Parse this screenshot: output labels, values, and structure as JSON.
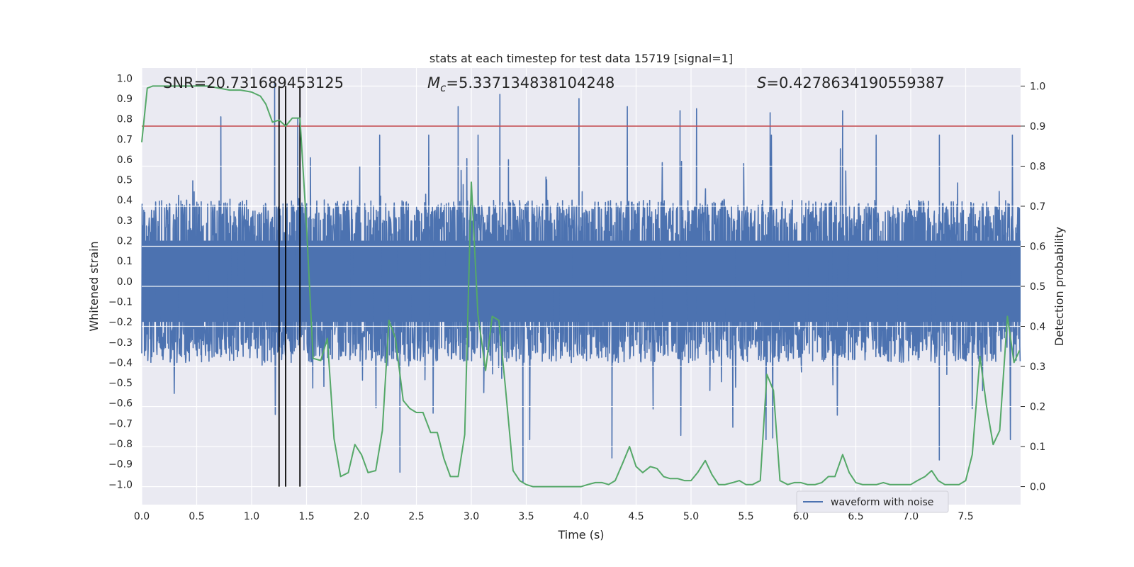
{
  "chart_data": {
    "type": "line",
    "title": "stats at each timestep for test data 15719 [signal=1]",
    "xlabel": "Time (s)",
    "ylabel_left": "Whitened strain",
    "ylabel_right": "Detection probability",
    "xlim": [
      0.0,
      8.0
    ],
    "ylim_left": [
      -1.1,
      1.05
    ],
    "ylim_right": [
      -0.045,
      1.045
    ],
    "grid": true,
    "x_ticks": [
      "0.0",
      "0.5",
      "1.0",
      "1.5",
      "2.0",
      "2.5",
      "3.0",
      "3.5",
      "4.0",
      "4.5",
      "5.0",
      "5.5",
      "6.0",
      "6.5",
      "7.0",
      "7.5"
    ],
    "x_tick_values": [
      0.0,
      0.5,
      1.0,
      1.5,
      2.0,
      2.5,
      3.0,
      3.5,
      4.0,
      4.5,
      5.0,
      5.5,
      6.0,
      6.5,
      7.0,
      7.5
    ],
    "y_left_ticks": [
      "1.0",
      "0.9",
      "0.8",
      "0.7",
      "0.6",
      "0.5",
      "0.4",
      "0.3",
      "0.2",
      "0.1",
      "0.0",
      "−0.1",
      "−0.2",
      "−0.3",
      "−0.4",
      "−0.5",
      "−0.6",
      "−0.7",
      "−0.8",
      "−0.9",
      "−1.0"
    ],
    "y_left_tick_values": [
      1.0,
      0.9,
      0.8,
      0.7,
      0.6,
      0.5,
      0.4,
      0.3,
      0.2,
      0.1,
      0.0,
      -0.1,
      -0.2,
      -0.3,
      -0.4,
      -0.5,
      -0.6,
      -0.7,
      -0.8,
      -0.9,
      -1.0
    ],
    "y_right_ticks": [
      "1.0",
      "0.9",
      "0.8",
      "0.7",
      "0.6",
      "0.5",
      "0.4",
      "0.3",
      "0.2",
      "0.1",
      "0.0"
    ],
    "y_right_tick_values": [
      1.0,
      0.9,
      0.8,
      0.7,
      0.6,
      0.5,
      0.4,
      0.3,
      0.2,
      0.1,
      0.0
    ],
    "annotations": {
      "snr": "SNR=20.731689453125",
      "mc_symbol": "M",
      "mc_subscript": "c",
      "mc_value": "=5.337134838104248",
      "s_symbol": "S",
      "s_value": "=0.4278634190559387"
    },
    "threshold": {
      "value": 0.9,
      "axis": "right",
      "color": "#c44e52"
    },
    "vertical_markers": [
      1.25,
      1.31,
      1.44
    ],
    "legend": {
      "label": "waveform with noise",
      "location": "lower-right",
      "color": "#4c72b0"
    },
    "waveform": {
      "name": "waveform with noise",
      "color": "#4c72b0",
      "description": "dense noisy strain, mostly within ±0.4, spikes to ±0.9",
      "typical_envelope": 0.4,
      "spikes": [
        {
          "t": 1.21,
          "v": 0.98
        },
        {
          "t": 0.72,
          "v": 0.81
        },
        {
          "t": 1.42,
          "v": 0.8
        },
        {
          "t": 2.88,
          "v": 0.86
        },
        {
          "t": 3.26,
          "v": 0.92
        },
        {
          "t": 3.98,
          "v": 0.9
        },
        {
          "t": 4.42,
          "v": 0.86
        },
        {
          "t": 4.9,
          "v": 0.84
        },
        {
          "t": 5.05,
          "v": 0.85
        },
        {
          "t": 5.72,
          "v": 0.83
        },
        {
          "t": 6.38,
          "v": 0.84
        },
        {
          "t": 3.47,
          "v": -0.99
        },
        {
          "t": 2.35,
          "v": -0.94
        },
        {
          "t": 4.28,
          "v": -0.87
        },
        {
          "t": 7.26,
          "v": -0.88
        }
      ]
    },
    "detection_probability": {
      "name": "detection probability",
      "color": "#55a868",
      "x": [
        0.0,
        0.05,
        0.1,
        0.2,
        0.3,
        0.4,
        0.5,
        0.6,
        0.7,
        0.8,
        0.9,
        1.0,
        1.08,
        1.13,
        1.19,
        1.25,
        1.31,
        1.37,
        1.44,
        1.5,
        1.56,
        1.63,
        1.69,
        1.75,
        1.81,
        1.88,
        1.94,
        2.0,
        2.06,
        2.13,
        2.19,
        2.25,
        2.31,
        2.38,
        2.44,
        2.5,
        2.56,
        2.63,
        2.69,
        2.75,
        2.81,
        2.88,
        2.94,
        3.0,
        3.06,
        3.13,
        3.19,
        3.25,
        3.31,
        3.38,
        3.44,
        3.5,
        3.56,
        3.63,
        3.69,
        3.75,
        3.81,
        3.88,
        3.94,
        4.0,
        4.06,
        4.13,
        4.19,
        4.25,
        4.31,
        4.38,
        4.44,
        4.5,
        4.56,
        4.63,
        4.69,
        4.75,
        4.81,
        4.88,
        4.94,
        5.0,
        5.06,
        5.13,
        5.19,
        5.25,
        5.31,
        5.38,
        5.44,
        5.5,
        5.56,
        5.63,
        5.69,
        5.75,
        5.81,
        5.88,
        5.94,
        6.0,
        6.06,
        6.13,
        6.19,
        6.25,
        6.31,
        6.38,
        6.44,
        6.5,
        6.56,
        6.63,
        6.69,
        6.75,
        6.81,
        6.88,
        6.94,
        7.0,
        7.06,
        7.13,
        7.19,
        7.25,
        7.31,
        7.38,
        7.44,
        7.5,
        7.56,
        7.63,
        7.69,
        7.75,
        7.81,
        7.88,
        7.94,
        8.0
      ],
      "y": [
        0.86,
        0.995,
        1.0,
        1.0,
        1.0,
        1.0,
        1.0,
        1.0,
        0.995,
        0.99,
        0.99,
        0.985,
        0.975,
        0.955,
        0.91,
        0.915,
        0.9,
        0.92,
        0.92,
        0.65,
        0.32,
        0.315,
        0.37,
        0.12,
        0.025,
        0.035,
        0.105,
        0.08,
        0.035,
        0.04,
        0.14,
        0.415,
        0.37,
        0.215,
        0.195,
        0.185,
        0.185,
        0.135,
        0.135,
        0.07,
        0.025,
        0.025,
        0.13,
        0.76,
        0.43,
        0.29,
        0.425,
        0.415,
        0.25,
        0.04,
        0.015,
        0.005,
        0.0,
        0.0,
        0.0,
        0.0,
        0.0,
        0.0,
        0.0,
        0.0,
        0.005,
        0.01,
        0.01,
        0.005,
        0.015,
        0.06,
        0.1,
        0.05,
        0.035,
        0.05,
        0.045,
        0.025,
        0.02,
        0.02,
        0.015,
        0.015,
        0.035,
        0.065,
        0.03,
        0.005,
        0.005,
        0.01,
        0.015,
        0.005,
        0.005,
        0.015,
        0.28,
        0.24,
        0.015,
        0.005,
        0.01,
        0.01,
        0.005,
        0.005,
        0.01,
        0.025,
        0.025,
        0.08,
        0.035,
        0.01,
        0.005,
        0.005,
        0.005,
        0.01,
        0.005,
        0.005,
        0.005,
        0.005,
        0.015,
        0.025,
        0.04,
        0.015,
        0.005,
        0.005,
        0.005,
        0.015,
        0.08,
        0.325,
        0.2,
        0.105,
        0.14,
        0.425,
        0.31,
        0.34
      ]
    }
  }
}
